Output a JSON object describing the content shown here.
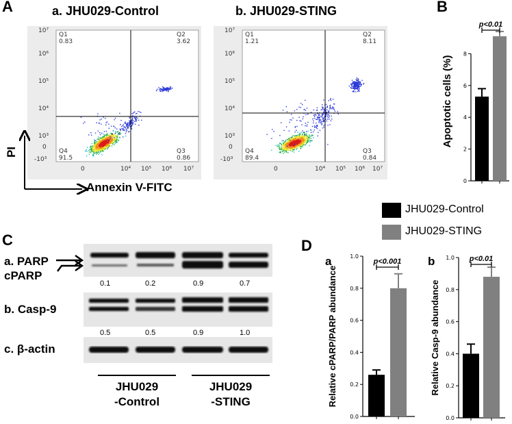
{
  "panels": {
    "A": "A",
    "B": "B",
    "C": "C",
    "D": "D"
  },
  "flow": {
    "plots": [
      {
        "title": "a. JHU029-Control",
        "quadrants": {
          "q1_name": "Q1",
          "q1_val": "0.83",
          "q2_name": "Q2",
          "q2_val": "3.62",
          "q3_name": "Q3",
          "q3_val": "0.86",
          "q4_name": "Q4",
          "q4_val": "91.5"
        }
      },
      {
        "title": "b. JHU029-STING",
        "quadrants": {
          "q1_name": "Q1",
          "q1_val": "1.21",
          "q2_name": "Q2",
          "q2_val": "8.11",
          "q3_name": "Q3",
          "q3_val": "0.84",
          "q4_name": "Q4",
          "q4_val": "89.4"
        }
      }
    ],
    "y_axis_label": "PI",
    "x_axis_label": "Annexin V-FITC",
    "y_ticks": [
      "10⁷",
      "10⁶",
      "10⁵",
      "10⁴",
      "10³",
      "0",
      "-10³"
    ],
    "x_ticks": [
      "0",
      "10⁴",
      "10⁵",
      "10⁶",
      "10⁷"
    ]
  },
  "western": {
    "rows": [
      {
        "label": "a. PARP",
        "values": [
          "0.1",
          "0.2",
          "0.9",
          "0.7"
        ]
      },
      {
        "label": "b. Casp-9",
        "values": [
          "0.5",
          "0.5",
          "0.9",
          "1.0"
        ]
      },
      {
        "label": "c. β-actin",
        "values": []
      }
    ],
    "cparp_label": "cPARP",
    "groups": [
      {
        "line1": "JHU029",
        "line2": "-Control"
      },
      {
        "line1": "JHU029",
        "line2": "-STING"
      }
    ]
  },
  "legend": [
    {
      "label": "JHU029-Control",
      "color": "#000000"
    },
    {
      "label": "JHU029-STING",
      "color": "#808080"
    }
  ],
  "chart_data": [
    {
      "panel": "B",
      "type": "bar",
      "categories": [
        "JHU029-Control",
        "JHU029-STING"
      ],
      "values": [
        5.3,
        9.1
      ],
      "errors": [
        0.5,
        0.3
      ],
      "ylabel": "Apoptotic cells (%)",
      "ylim": [
        0,
        10
      ],
      "yticks": [
        "0",
        "2",
        "4",
        "6",
        "8"
      ],
      "annotation": "p<0.01"
    },
    {
      "panel": "Da",
      "type": "bar",
      "categories": [
        "JHU029-Control",
        "JHU029-STING"
      ],
      "values": [
        0.26,
        0.8
      ],
      "errors": [
        0.03,
        0.09
      ],
      "ylabel": "Relative cPARP/PARP abundance",
      "ylim": [
        0,
        1.0
      ],
      "yticks": [
        "0.0",
        "0.2",
        "0.4",
        "0.6",
        "0.8",
        "1.0"
      ],
      "annotation": "p<0.001"
    },
    {
      "panel": "Db",
      "type": "bar",
      "categories": [
        "JHU029-Control",
        "JHU029-STING"
      ],
      "values": [
        0.4,
        0.88
      ],
      "errors": [
        0.06,
        0.06
      ],
      "ylabel": "Relative Casp-9 abundance",
      "ylim": [
        0,
        1.0
      ],
      "yticks": [
        "0.0",
        "0.2",
        "0.4",
        "0.6",
        "0.8",
        "1.0"
      ],
      "annotation": "p<0.01"
    }
  ],
  "sublabels": {
    "Da": "a",
    "Db": "b"
  }
}
